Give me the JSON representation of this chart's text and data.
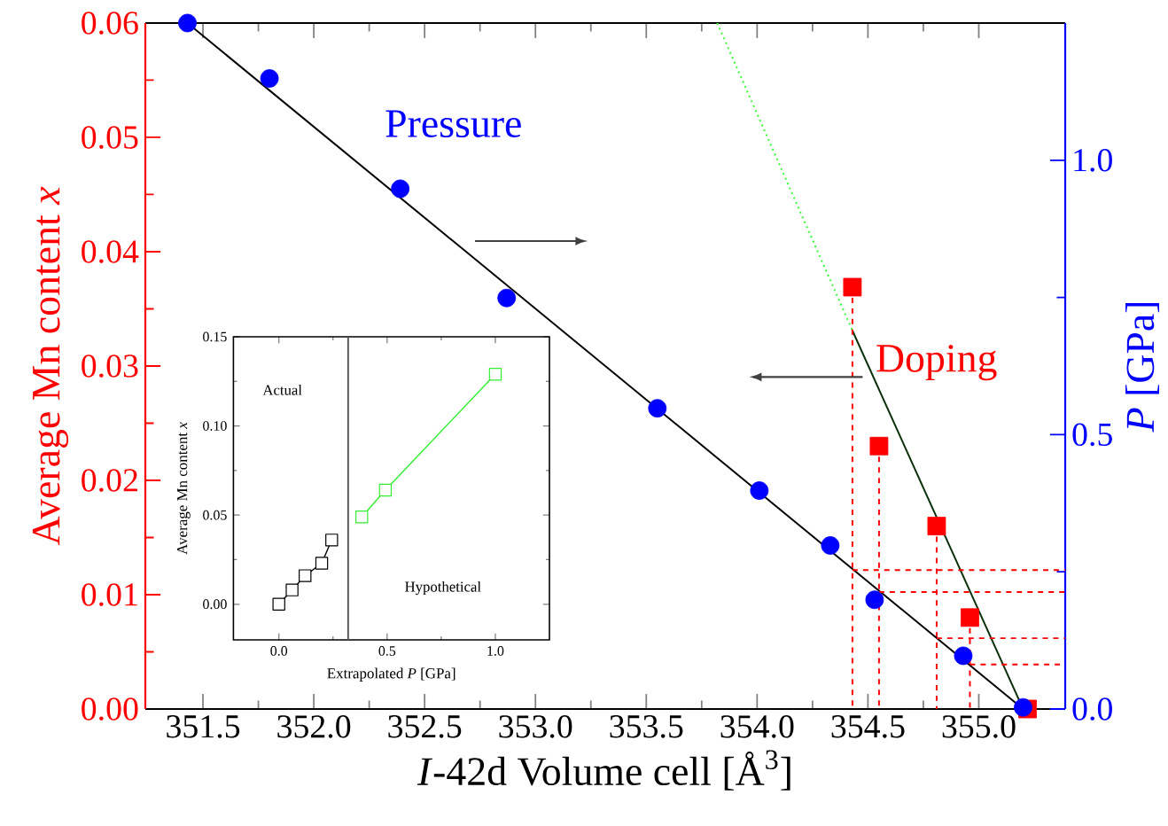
{
  "chart_data": [
    {
      "type": "scatter",
      "xlabel": "*I*-42d Volume cell [Å$^{3}$]",
      "ylabel": "Average Mn content *x*",
      "y2label": "*P* [GPa]",
      "xlim": [
        351.24,
        355.39
      ],
      "xticks": [
        {
          "value": 351.5,
          "label": "351.5"
        },
        {
          "value": 352,
          "label": "352.0"
        },
        {
          "value": 352.5,
          "label": "352.5"
        },
        {
          "value": 353,
          "label": "353.0"
        },
        {
          "value": 353.5,
          "label": "353.5"
        },
        {
          "value": 354,
          "label": "354.0"
        },
        {
          "value": 354.5,
          "label": "354.5"
        },
        {
          "value": 355,
          "label": "355.0"
        }
      ],
      "ylim": [
        0,
        0.06
      ],
      "yticks": [
        {
          "value": 0,
          "label": "0.00"
        },
        {
          "value": 0.01,
          "label": "0.01"
        },
        {
          "value": 0.02,
          "label": "0.02"
        },
        {
          "value": 0.03,
          "label": "0.03"
        },
        {
          "value": 0.04,
          "label": "0.04"
        },
        {
          "value": 0.05,
          "label": "0.05"
        },
        {
          "value": 0.06,
          "label": "0.06"
        }
      ],
      "y2lim": [
        0,
        1.25
      ],
      "y2ticks": [
        {
          "value": 0,
          "label": "0.0"
        },
        {
          "value": 0.5,
          "label": "0.5"
        },
        {
          "value": 1,
          "label": "1.0"
        }
      ],
      "series": [
        {
          "name": "Pressure",
          "type": "scatter",
          "axis": "y2",
          "color": "#0000ff",
          "marker": "circle",
          "x": [
            351.43,
            351.8,
            352.39,
            352.87,
            353.55,
            354.01,
            354.33,
            354.53,
            354.93,
            355.2
          ],
          "values": [
            1.25,
            1.149,
            0.948,
            0.749,
            0.548,
            0.398,
            0.298,
            0.199,
            0.097,
            0.003
          ]
        },
        {
          "name": "Doping",
          "type": "scatter",
          "axis": "y",
          "color": "#ff0000",
          "marker": "square",
          "x": [
            354.43,
            354.55,
            354.81,
            354.96,
            355.22
          ],
          "values": [
            0.0369,
            0.023,
            0.016,
            0.008,
            0
          ]
        },
        {
          "type": "line",
          "axis": "y2",
          "color": "#000000",
          "x": [
            351.43,
            355.2
          ],
          "values": [
            1.25,
            0
          ]
        },
        {
          "type": "line",
          "axis": "y",
          "color": "#0a300a",
          "x": [
            354.43,
            355.2
          ],
          "values": [
            0.0331,
            0
          ]
        },
        {
          "type": "line",
          "axis": "y",
          "color": "#33ff33",
          "line_style": "dotted",
          "x": [
            353.82,
            354.43
          ],
          "values": [
            0.06,
            0.0331
          ]
        },
        {
          "type": "line",
          "axis": "y",
          "color": "#ff0000",
          "line_style": "dashed",
          "x": [
            354.43,
            354.43
          ],
          "values": [
            0.0369,
            0
          ]
        },
        {
          "type": "line",
          "axis": "y",
          "color": "#ff0000",
          "line_style": "dashed",
          "x": [
            354.55,
            354.55
          ],
          "values": [
            0.023,
            0
          ]
        },
        {
          "type": "line",
          "axis": "y",
          "color": "#ff0000",
          "line_style": "dashed",
          "x": [
            354.81,
            354.81
          ],
          "values": [
            0.016,
            0
          ]
        },
        {
          "type": "line",
          "axis": "y",
          "color": "#ff0000",
          "line_style": "dashed",
          "x": [
            354.96,
            354.96
          ],
          "values": [
            0.008,
            0
          ]
        },
        {
          "type": "line",
          "axis": "y2",
          "color": "#ff0000",
          "line_style": "dashed",
          "x": [
            354.43,
            355.39
          ],
          "values": [
            0.253,
            0.253
          ]
        },
        {
          "type": "line",
          "axis": "y2",
          "color": "#ff0000",
          "line_style": "dashed",
          "x": [
            354.55,
            355.39
          ],
          "values": [
            0.213,
            0.213
          ]
        },
        {
          "type": "line",
          "axis": "y2",
          "color": "#ff0000",
          "line_style": "dashed",
          "x": [
            354.81,
            355.39
          ],
          "values": [
            0.129,
            0.129
          ]
        },
        {
          "type": "line",
          "axis": "y2",
          "color": "#ff0000",
          "line_style": "dashed",
          "x": [
            354.96,
            355.39
          ],
          "values": [
            0.081,
            0.081
          ]
        }
      ]
    },
    {
      "type": "line",
      "xlabel": "Extrapolated *P* [GPa]",
      "ylabel": "Average Mn content *x*",
      "marker": "square",
      "xlim": [
        -0.21,
        1.25
      ],
      "xticks": [
        {
          "value": 0,
          "label": "0.0"
        },
        {
          "value": 0.5,
          "label": "0.5"
        },
        {
          "value": 1,
          "label": "1.0"
        }
      ],
      "ylim": [
        -0.02,
        0.15
      ],
      "yticks": [
        {
          "value": 0,
          "label": "0.00"
        },
        {
          "value": 0.05,
          "label": "0.05"
        },
        {
          "value": 0.1,
          "label": "0.10"
        },
        {
          "value": 0.15,
          "label": "0.15"
        }
      ],
      "annotations": [
        "Actual",
        "Hypothetical"
      ],
      "ref_lines": [
        {
          "axis": "x",
          "value": 0.32,
          "color": "#555555"
        }
      ],
      "series": [
        {
          "color": "#000000",
          "x": [
            0,
            0.061,
            0.121,
            0.198,
            0.244
          ],
          "values": [
            0,
            0.008,
            0.016,
            0.023,
            0.036
          ]
        },
        {
          "color": "#33ee33",
          "x": [
            0.383,
            0.492,
            1.0
          ],
          "values": [
            0.049,
            0.064,
            0.129
          ]
        }
      ]
    }
  ]
}
